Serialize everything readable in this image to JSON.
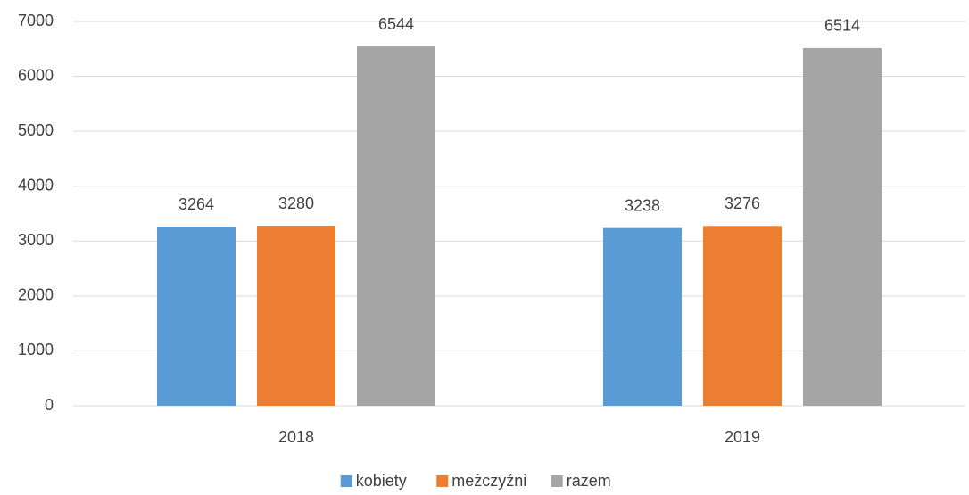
{
  "chart_data": {
    "type": "bar",
    "categories": [
      "2018",
      "2019"
    ],
    "series": [
      {
        "name": "kobiety",
        "color": "#5b9bd5",
        "values": [
          3264,
          3238
        ]
      },
      {
        "name": "meżczyźni",
        "color": "#ed7d31",
        "values": [
          3280,
          3276
        ]
      },
      {
        "name": "razem",
        "color": "#a5a5a5",
        "values": [
          6544,
          6514
        ]
      }
    ],
    "ylim": [
      0,
      7000
    ],
    "yticks": [
      0,
      1000,
      2000,
      3000,
      4000,
      5000,
      6000,
      7000
    ],
    "grid": true,
    "legend": "bottom",
    "data_labels": true
  }
}
